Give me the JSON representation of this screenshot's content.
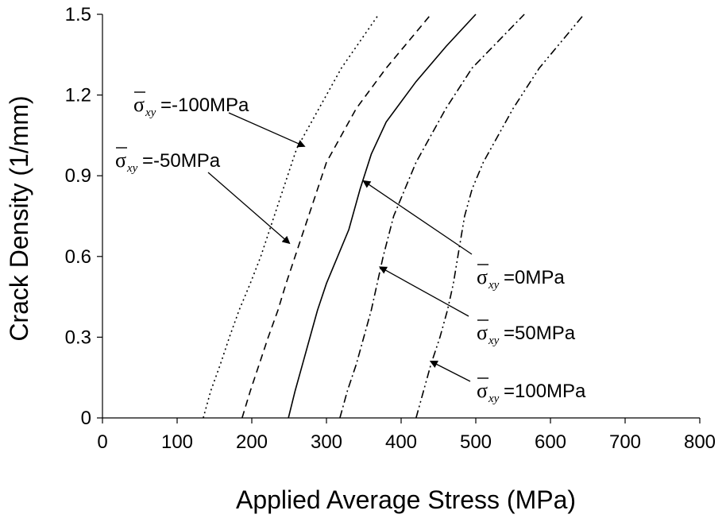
{
  "chart_data": {
    "type": "line",
    "xlabel": "Applied Average Stress (MPa)",
    "ylabel": "Crack Density (1/mm)",
    "xlim": [
      0,
      800
    ],
    "ylim": [
      0,
      1.5
    ],
    "x_ticks": [
      0,
      100,
      200,
      300,
      400,
      500,
      600,
      700,
      800
    ],
    "y_ticks": [
      0,
      0.3,
      0.6,
      0.9,
      1.2,
      1.5
    ],
    "x_tick_labels": [
      "0",
      "100",
      "200",
      "300",
      "400",
      "500",
      "600",
      "700",
      "800"
    ],
    "y_tick_labels": [
      "0",
      "0.3",
      "0.6",
      "0.9",
      "1.2",
      "1.5"
    ],
    "grid": false,
    "legend": "none",
    "series": [
      {
        "label_text": "=-100MPa",
        "dash": "dotted",
        "points": [
          [
            135,
            0
          ],
          [
            145,
            0.1
          ],
          [
            158,
            0.2
          ],
          [
            170,
            0.3
          ],
          [
            183,
            0.4
          ],
          [
            198,
            0.5
          ],
          [
            212,
            0.6
          ],
          [
            230,
            0.75
          ],
          [
            248,
            0.9
          ],
          [
            260,
            1.0
          ],
          [
            290,
            1.15
          ],
          [
            320,
            1.3
          ],
          [
            345,
            1.4
          ],
          [
            370,
            1.5
          ]
        ]
      },
      {
        "label_text": "=-50MPa",
        "dash": "dashed",
        "points": [
          [
            187,
            0
          ],
          [
            198,
            0.1
          ],
          [
            210,
            0.2
          ],
          [
            222,
            0.3
          ],
          [
            235,
            0.4
          ],
          [
            246,
            0.5
          ],
          [
            258,
            0.6
          ],
          [
            270,
            0.7
          ],
          [
            282,
            0.8
          ],
          [
            300,
            0.95
          ],
          [
            340,
            1.15
          ],
          [
            380,
            1.3
          ],
          [
            410,
            1.4
          ],
          [
            440,
            1.5
          ]
        ]
      },
      {
        "label_text": "=0MPa",
        "dash": "solid",
        "points": [
          [
            249,
            0
          ],
          [
            258,
            0.1
          ],
          [
            268,
            0.2
          ],
          [
            278,
            0.3
          ],
          [
            288,
            0.4
          ],
          [
            300,
            0.5
          ],
          [
            315,
            0.6
          ],
          [
            330,
            0.7
          ],
          [
            345,
            0.85
          ],
          [
            360,
            0.98
          ],
          [
            380,
            1.1
          ],
          [
            420,
            1.25
          ],
          [
            460,
            1.38
          ],
          [
            500,
            1.5
          ]
        ]
      },
      {
        "label_text": "=50MPa",
        "dash": "dash-dot",
        "points": [
          [
            318,
            0
          ],
          [
            328,
            0.1
          ],
          [
            340,
            0.2
          ],
          [
            350,
            0.3
          ],
          [
            360,
            0.4
          ],
          [
            368,
            0.5
          ],
          [
            376,
            0.6
          ],
          [
            390,
            0.75
          ],
          [
            405,
            0.85
          ],
          [
            420,
            0.95
          ],
          [
            460,
            1.15
          ],
          [
            495,
            1.3
          ],
          [
            530,
            1.4
          ],
          [
            565,
            1.5
          ]
        ]
      },
      {
        "label_text": "=100MPa",
        "dash": "dash-dot-dot",
        "points": [
          [
            420,
            0
          ],
          [
            430,
            0.1
          ],
          [
            440,
            0.2
          ],
          [
            452,
            0.3
          ],
          [
            462,
            0.4
          ],
          [
            470,
            0.5
          ],
          [
            476,
            0.6
          ],
          [
            485,
            0.75
          ],
          [
            495,
            0.85
          ],
          [
            510,
            0.95
          ],
          [
            550,
            1.15
          ],
          [
            585,
            1.3
          ],
          [
            615,
            1.4
          ],
          [
            645,
            1.5
          ]
        ]
      }
    ],
    "annotations": [
      {
        "text": "=-100MPa",
        "symbol": "σ",
        "subscript": "xy",
        "arrow_to": [
          270,
          1.01
        ]
      },
      {
        "text": "=-50MPa",
        "symbol": "σ",
        "subscript": "xy",
        "arrow_to": [
          250,
          0.65
        ]
      },
      {
        "text": "=0MPa",
        "symbol": "σ",
        "subscript": "xy",
        "arrow_to": [
          350,
          0.88
        ]
      },
      {
        "text": "=50MPa",
        "symbol": "σ",
        "subscript": "xy",
        "arrow_to": [
          372,
          0.56
        ]
      },
      {
        "text": "=100MPa",
        "symbol": "σ",
        "subscript": "xy",
        "arrow_to": [
          440,
          0.21
        ]
      }
    ]
  }
}
